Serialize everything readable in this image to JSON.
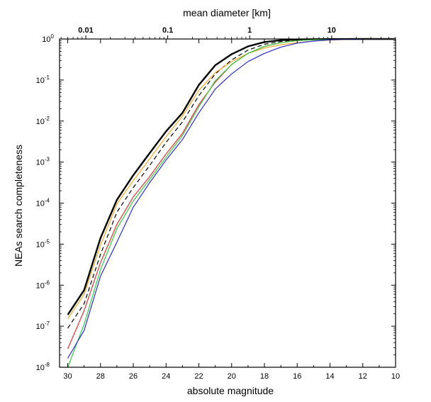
{
  "chart_data": {
    "type": "line",
    "title": "",
    "xlabel": "absolute magnitude",
    "x2label": "mean diameter [km]",
    "ylabel": "NEAs search completeness",
    "xlim": [
      30.5,
      10
    ],
    "ylim_log10": [
      -8,
      0
    ],
    "x_ticks": [
      30,
      28,
      26,
      24,
      22,
      20,
      18,
      16,
      14,
      12,
      10
    ],
    "x2_ticks": [
      {
        "label": "0.01",
        "H": 28.9
      },
      {
        "label": "0.1",
        "H": 23.9
      },
      {
        "label": "1",
        "H": 18.9
      },
      {
        "label": "10",
        "H": 13.9
      }
    ],
    "y_ticks": [
      {
        "base": "10",
        "exp": "-8",
        "log": -8
      },
      {
        "base": "10",
        "exp": "-7",
        "log": -7
      },
      {
        "base": "10",
        "exp": "-6",
        "log": -6
      },
      {
        "base": "10",
        "exp": "-5",
        "log": -5
      },
      {
        "base": "10",
        "exp": "-4",
        "log": -4
      },
      {
        "base": "10",
        "exp": "-3",
        "log": -3
      },
      {
        "base": "10",
        "exp": "-2",
        "log": -2
      },
      {
        "base": "10",
        "exp": "-1",
        "log": -1
      },
      {
        "base": "10",
        "exp": "",
        "label": "10",
        "exp_text": "0",
        "log": 0
      }
    ],
    "series": [
      {
        "name": "black-thick",
        "color": "#000000",
        "width": 2.4,
        "dash": "",
        "x": [
          30,
          29,
          28,
          27,
          26,
          25,
          24,
          23,
          22,
          21,
          20,
          19,
          18,
          17,
          16,
          15,
          14,
          13,
          12,
          11,
          10
        ],
        "log10y": [
          -6.72,
          -6.12,
          -4.85,
          -3.92,
          -3.32,
          -2.78,
          -2.25,
          -1.8,
          -1.12,
          -0.64,
          -0.37,
          -0.18,
          -0.075,
          -0.03,
          -0.012,
          -0.005,
          -0.002,
          -0.001,
          -0.0005,
          -0.0002,
          0
        ]
      },
      {
        "name": "black-dashed",
        "color": "#000000",
        "width": 1.2,
        "dash": "6,4",
        "x": [
          30,
          29,
          28,
          27,
          26,
          25,
          24,
          23,
          22,
          21,
          20,
          19,
          18,
          17,
          16,
          15,
          14,
          13,
          12,
          11,
          10
        ],
        "log10y": [
          -7.05,
          -6.45,
          -5.25,
          -4.22,
          -3.62,
          -3.08,
          -2.52,
          -2.02,
          -1.38,
          -0.85,
          -0.51,
          -0.27,
          -0.13,
          -0.06,
          -0.025,
          -0.012,
          -0.005,
          -0.002,
          -0.001,
          -0.0005,
          0
        ]
      },
      {
        "name": "orange",
        "color": "#f5a623",
        "width": 1.2,
        "dash": "",
        "x": [
          30,
          29,
          28,
          27,
          26,
          25,
          24,
          23,
          22,
          21,
          20,
          19,
          18,
          17,
          16,
          15,
          14,
          13,
          12,
          11,
          10
        ],
        "log10y": [
          -6.82,
          -6.22,
          -5.02,
          -4.02,
          -3.45,
          -2.92,
          -2.38,
          -1.88,
          -1.25,
          -0.82,
          -0.55,
          -0.35,
          -0.22,
          -0.14,
          -0.09,
          -0.05,
          -0.03,
          -0.01,
          -0.004,
          -0.001,
          0
        ]
      },
      {
        "name": "red",
        "color": "#e53030",
        "width": 1.2,
        "dash": "",
        "x": [
          30,
          29,
          28,
          27,
          26,
          25,
          24,
          23,
          22,
          21,
          20,
          19,
          18,
          17,
          16,
          15,
          14,
          13,
          12,
          11,
          10
        ],
        "log10y": [
          -7.55,
          -6.62,
          -5.45,
          -4.52,
          -3.85,
          -3.35,
          -2.8,
          -2.3,
          -1.6,
          -1.05,
          -0.62,
          -0.35,
          -0.18,
          -0.09,
          -0.04,
          -0.02,
          -0.008,
          -0.003,
          -0.001,
          -0.0005,
          0
        ]
      },
      {
        "name": "green",
        "color": "#2ecc40",
        "width": 1.2,
        "dash": "",
        "x": [
          30,
          29,
          28,
          27,
          26,
          25,
          24,
          23,
          22,
          21,
          20,
          19,
          18,
          17,
          16,
          15,
          14,
          13,
          12,
          11,
          10
        ],
        "log10y": [
          -8.0,
          -6.95,
          -5.62,
          -4.62,
          -3.95,
          -3.42,
          -2.88,
          -2.35,
          -1.65,
          -1.02,
          -0.62,
          -0.35,
          -0.18,
          -0.09,
          -0.04,
          -0.02,
          -0.008,
          -0.003,
          -0.001,
          -0.0005,
          0
        ]
      },
      {
        "name": "blue",
        "color": "#2b2bd6",
        "width": 1.2,
        "dash": "",
        "x": [
          30,
          29,
          28,
          27,
          26,
          25,
          24,
          23,
          22,
          21,
          20,
          19,
          18,
          17,
          16,
          15,
          14,
          13,
          12,
          11,
          10
        ],
        "log10y": [
          -7.78,
          -7.1,
          -5.78,
          -4.95,
          -4.1,
          -3.5,
          -2.95,
          -2.45,
          -1.8,
          -1.22,
          -0.85,
          -0.55,
          -0.35,
          -0.2,
          -0.1,
          -0.05,
          -0.02,
          -0.008,
          -0.003,
          -0.001,
          0
        ]
      }
    ]
  }
}
